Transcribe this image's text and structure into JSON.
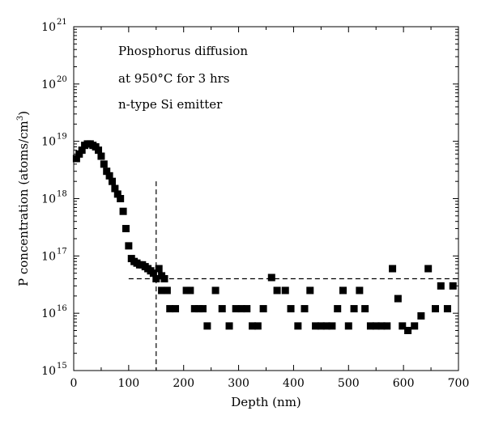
{
  "chart_data": {
    "type": "scatter",
    "xlabel": "Depth (nm)",
    "ylabel": "P concentration (atoms/cm3)",
    "ylabel_text": "P concentration (atoms/cm",
    "ylabel_sup": "3",
    "ylabel_close": ")",
    "xlim": [
      0,
      700
    ],
    "ylim": [
      1000000000000000.0,
      1e+21
    ],
    "y_scale": "log",
    "x_ticks": [
      0,
      100,
      200,
      300,
      400,
      500,
      600,
      700
    ],
    "x_tick_labels": [
      "0",
      "100",
      "200",
      "300",
      "400",
      "500",
      "600",
      "700"
    ],
    "y_ticks": [
      {
        "value": 1000000000000000.0,
        "base": "10",
        "exp": "15"
      },
      {
        "value": 1e+16,
        "base": "10",
        "exp": "16"
      },
      {
        "value": 1e+17,
        "base": "10",
        "exp": "17"
      },
      {
        "value": 1e+18,
        "base": "10",
        "exp": "18"
      },
      {
        "value": 1e+19,
        "base": "10",
        "exp": "19"
      },
      {
        "value": 1e+20,
        "base": "10",
        "exp": "20"
      },
      {
        "value": 1e+21,
        "base": "10",
        "exp": "21"
      }
    ],
    "annotations": [
      "Phosphorus diffusion",
      "at 950°C for 3 hrs",
      "n-type Si emitter"
    ],
    "reference_lines": [
      {
        "orientation": "vertical",
        "x": 150,
        "y_from": 2e+18,
        "y_to": 1000000000000000.0,
        "style": "dashed"
      },
      {
        "orientation": "horizontal",
        "y": 4e+16,
        "x_from": 100,
        "x_to": 700,
        "style": "dashed"
      }
    ],
    "marker": "square",
    "color": "#000000",
    "series": [
      {
        "points": [
          [
            5,
            5e+18
          ],
          [
            10,
            6e+18
          ],
          [
            15,
            7e+18
          ],
          [
            20,
            8.5e+18
          ],
          [
            25,
            9e+18
          ],
          [
            30,
            9e+18
          ],
          [
            35,
            8.5e+18
          ],
          [
            40,
            8e+18
          ],
          [
            45,
            7e+18
          ],
          [
            50,
            5.5e+18
          ],
          [
            55,
            4e+18
          ],
          [
            60,
            3e+18
          ],
          [
            65,
            2.5e+18
          ],
          [
            70,
            2e+18
          ],
          [
            75,
            1.5e+18
          ],
          [
            80,
            1.2e+18
          ],
          [
            85,
            1e+18
          ],
          [
            90,
            6e+17
          ],
          [
            95,
            3e+17
          ],
          [
            100,
            1.5e+17
          ],
          [
            105,
            9e+16
          ],
          [
            110,
            8e+16
          ],
          [
            115,
            7.5e+16
          ],
          [
            120,
            7e+16
          ],
          [
            125,
            7e+16
          ],
          [
            130,
            6.5e+16
          ],
          [
            135,
            6e+16
          ],
          [
            140,
            5.5e+16
          ],
          [
            145,
            5e+16
          ],
          [
            150,
            4e+16
          ],
          [
            155,
            6e+16
          ],
          [
            160,
            4.5e+16
          ],
          [
            165,
            4e+16
          ],
          [
            160,
            2.5e+16
          ],
          [
            170,
            2.5e+16
          ],
          [
            175,
            1.2e+16
          ],
          [
            185,
            1.2e+16
          ],
          [
            205,
            2.5e+16
          ],
          [
            212,
            2.5e+16
          ],
          [
            220,
            1.2e+16
          ],
          [
            228,
            1.2e+16
          ],
          [
            235,
            1.2e+16
          ],
          [
            243,
            6000000000000000.0
          ],
          [
            258,
            2.5e+16
          ],
          [
            270,
            1.2e+16
          ],
          [
            283,
            6000000000000000.0
          ],
          [
            295,
            1.2e+16
          ],
          [
            305,
            1.2e+16
          ],
          [
            315,
            1.2e+16
          ],
          [
            325,
            6000000000000000.0
          ],
          [
            335,
            6000000000000000.0
          ],
          [
            345,
            1.2e+16
          ],
          [
            360,
            4.2e+16
          ],
          [
            370,
            2.5e+16
          ],
          [
            385,
            2.5e+16
          ],
          [
            395,
            1.2e+16
          ],
          [
            408,
            6000000000000000.0
          ],
          [
            420,
            1.2e+16
          ],
          [
            430,
            2.5e+16
          ],
          [
            440,
            6000000000000000.0
          ],
          [
            450,
            6000000000000000.0
          ],
          [
            460,
            6000000000000000.0
          ],
          [
            470,
            6000000000000000.0
          ],
          [
            480,
            1.2e+16
          ],
          [
            490,
            2.5e+16
          ],
          [
            500,
            6000000000000000.0
          ],
          [
            510,
            1.2e+16
          ],
          [
            520,
            2.5e+16
          ],
          [
            530,
            1.2e+16
          ],
          [
            540,
            6000000000000000.0
          ],
          [
            550,
            6000000000000000.0
          ],
          [
            560,
            6000000000000000.0
          ],
          [
            570,
            6000000000000000.0
          ],
          [
            580,
            6e+16
          ],
          [
            590,
            1.8e+16
          ],
          [
            598,
            6000000000000000.0
          ],
          [
            608,
            5000000000000000.0
          ],
          [
            620,
            6000000000000000.0
          ],
          [
            632,
            9000000000000000.0
          ],
          [
            645,
            6e+16
          ],
          [
            658,
            1.2e+16
          ],
          [
            668,
            3e+16
          ],
          [
            680,
            1.2e+16
          ],
          [
            690,
            3e+16
          ]
        ]
      }
    ]
  }
}
